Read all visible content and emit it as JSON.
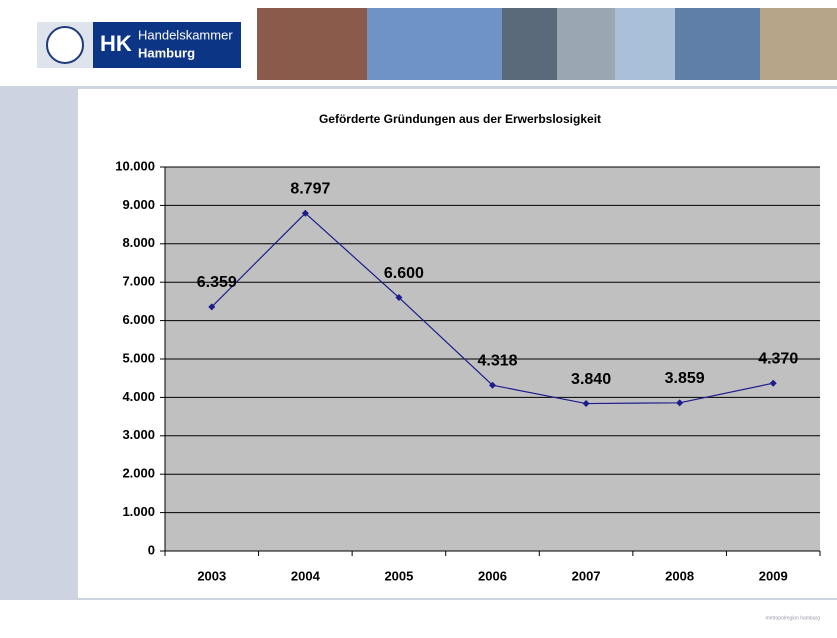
{
  "header": {
    "logo_abbr": "HK",
    "logo_name_1": "Handelskammer",
    "logo_name_2": "Hamburg"
  },
  "footer": {
    "logo_text": "metropolregion hamburg"
  },
  "chart_data": {
    "type": "line",
    "title": "Geförderte Gründungen aus der Erwerbslosigkeit",
    "categories": [
      "2003",
      "2004",
      "2005",
      "2006",
      "2007",
      "2008",
      "2009"
    ],
    "series": [
      {
        "name": null,
        "color": "#1c1c8c",
        "values": [
          6359,
          8797,
          6600,
          4318,
          3840,
          3859,
          4370
        ],
        "value_labels": [
          "6.359",
          "8.797",
          "6.600",
          "4.318",
          "3.840",
          "3.859",
          "4.370"
        ]
      }
    ],
    "ylim": [
      0,
      10000
    ],
    "yticks": [
      {
        "value": 0,
        "label": "0"
      },
      {
        "value": 1000,
        "label": "1.000"
      },
      {
        "value": 2000,
        "label": "2.000"
      },
      {
        "value": 3000,
        "label": "3.000"
      },
      {
        "value": 4000,
        "label": "4.000"
      },
      {
        "value": 5000,
        "label": "5.000"
      },
      {
        "value": 6000,
        "label": "6.000"
      },
      {
        "value": 7000,
        "label": "7.000"
      },
      {
        "value": 8000,
        "label": "8.000"
      },
      {
        "value": 9000,
        "label": "9.000"
      },
      {
        "value": 10000,
        "label": "10.000"
      }
    ],
    "grid": true,
    "plot_background": "#c0c0c0"
  }
}
